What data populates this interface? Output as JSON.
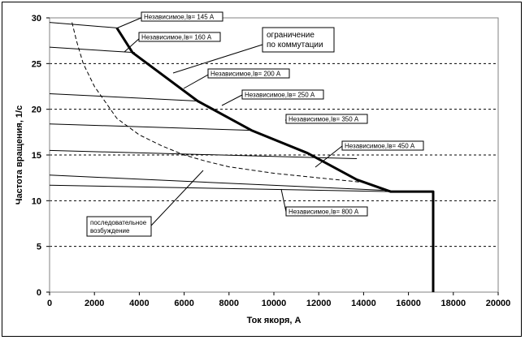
{
  "chart_data": {
    "type": "line",
    "xlabel": "Ток якоря, А",
    "ylabel": "Частота вращения, 1/с",
    "xlim": [
      0,
      20000
    ],
    "ylim": [
      0,
      30
    ],
    "x_ticks": [
      0,
      2000,
      4000,
      6000,
      8000,
      10000,
      12000,
      14000,
      16000,
      18000,
      20000
    ],
    "y_ticks": [
      0,
      5,
      10,
      15,
      20,
      25,
      30
    ],
    "grid": "horizontal dashed",
    "series": [
      {
        "name": "Независимое,Iв= 145 А",
        "style": "thin",
        "x": [
          0,
          3000
        ],
        "y": [
          29.5,
          28.9
        ]
      },
      {
        "name": "Независимое,Iв= 160 А",
        "style": "thin",
        "x": [
          0,
          3800
        ],
        "y": [
          26.8,
          26.2
        ]
      },
      {
        "name": "Независимое,Iв= 200 А",
        "style": "thin",
        "x": [
          0,
          6600
        ],
        "y": [
          21.7,
          20.9
        ]
      },
      {
        "name": "Независимое,Iв= 250 А",
        "style": "thin",
        "x": [
          0,
          9000
        ],
        "y": [
          18.4,
          17.7
        ]
      },
      {
        "name": "Независимое,Iв= 350 А",
        "style": "thin",
        "x": [
          0,
          13700
        ],
        "y": [
          15.5,
          14.6
        ]
      },
      {
        "name": "Независимое,Iв= 450 А",
        "style": "thin",
        "x": [
          0,
          15200
        ],
        "y": [
          12.8,
          11.1
        ]
      },
      {
        "name": "Независимое,Iв= 800 А",
        "style": "thin",
        "x": [
          0,
          15200
        ],
        "y": [
          11.7,
          11.0
        ]
      },
      {
        "name": "ограничение по коммутации",
        "style": "thick",
        "x": [
          3000,
          3700,
          6600,
          9000,
          11500,
          13700,
          15200,
          17100,
          17100
        ],
        "y": [
          28.9,
          26.2,
          20.9,
          17.7,
          15.2,
          12.3,
          11.0,
          11.0,
          0
        ]
      },
      {
        "name": "последовательное возбуждение",
        "style": "dashed",
        "x": [
          1000,
          1200,
          1500,
          2000,
          3000,
          4000,
          5000,
          6000,
          7000,
          8000,
          10000,
          12000,
          14000,
          15200
        ],
        "y": [
          29.5,
          27.5,
          25.0,
          22.5,
          19.0,
          17.2,
          16.0,
          15.0,
          14.3,
          13.7,
          13.0,
          12.5,
          12.0,
          11.0
        ]
      }
    ]
  },
  "annotations": [
    {
      "id": "a145",
      "label": "Независимое,Iв= 145 А"
    },
    {
      "id": "a160",
      "label": "Независимое,Iв= 160 А"
    },
    {
      "id": "a200",
      "label": "Независимое,Iв= 200 А"
    },
    {
      "id": "a250",
      "label": "Независимое,Iв= 250 А"
    },
    {
      "id": "a350",
      "label": "Независимое,Iв= 350 А"
    },
    {
      "id": "a450",
      "label": "Независимое,Iв= 450 А"
    },
    {
      "id": "a800",
      "label": "Независимое,Iв= 800 А"
    },
    {
      "id": "acom",
      "lines": [
        "ограничение",
        "по коммутации"
      ]
    },
    {
      "id": "aser",
      "lines": [
        "последовательное",
        "возбуждение"
      ]
    }
  ]
}
